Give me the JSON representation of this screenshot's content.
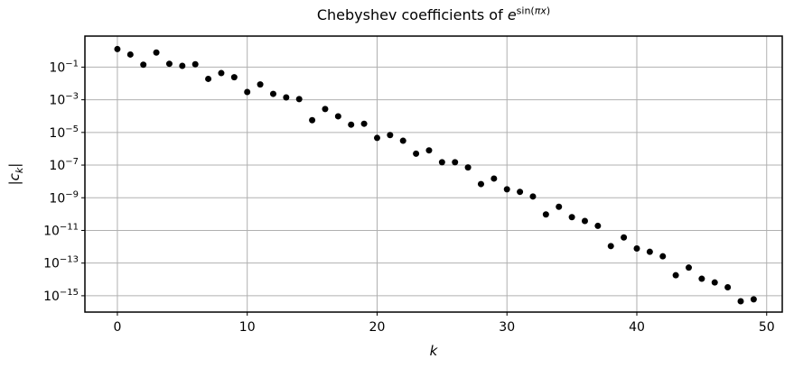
{
  "chart_data": {
    "type": "scatter",
    "title": "Chebyshev coefficients of e^sin(πx)",
    "title_parts": {
      "prefix": "Chebyshev coefficients of ",
      "base": "e",
      "sup_fn": "sin(",
      "sup_var": "πx",
      "sup_close": ")"
    },
    "xlabel": "k",
    "ylabel_parts": {
      "open": "|",
      "base": "c",
      "sub": "k",
      "close": "|"
    },
    "yscale": "log",
    "grid": true,
    "legend": null,
    "x": [
      0,
      1,
      2,
      3,
      4,
      5,
      6,
      7,
      8,
      9,
      10,
      11,
      12,
      13,
      14,
      15,
      16,
      17,
      18,
      19,
      20,
      21,
      22,
      23,
      24,
      25,
      26,
      27,
      28,
      29,
      30,
      31,
      32,
      33,
      34,
      35,
      36,
      37,
      38,
      39,
      40,
      41,
      42,
      43,
      44,
      45,
      46,
      47,
      48,
      49
    ],
    "y": [
      1.27,
      0.59,
      0.14,
      0.78,
      0.16,
      0.12,
      0.15,
      0.019,
      0.043,
      0.024,
      0.003,
      0.0087,
      0.0023,
      0.0014,
      0.0011,
      5.6e-05,
      0.00027,
      9.7e-05,
      3e-05,
      3.4e-05,
      4.6e-06,
      6.9e-06,
      3.1e-06,
      5e-07,
      8e-07,
      1.5e-07,
      1.5e-07,
      7.2e-08,
      6.9e-09,
      1.5e-08,
      3.3e-09,
      2.3e-09,
      1.2e-09,
      9.5e-11,
      2.8e-10,
      6.5e-11,
      3.8e-11,
      1.9e-11,
      1.1e-12,
      3.7e-12,
      7.8e-13,
      4.9e-13,
      2.6e-13,
      1.8e-14,
      5.3e-14,
      1.1e-14,
      6.5e-15,
      3.3e-15,
      4.6e-16,
      6e-16
    ],
    "xticks": [
      0,
      10,
      20,
      30,
      40,
      50
    ],
    "ytick_exponents": [
      -1,
      -3,
      -5,
      -7,
      -9,
      -11,
      -13,
      -15
    ],
    "xlim": [
      -2.5,
      51.2
    ],
    "ylim_exponents": [
      -16.0,
      0.9
    ],
    "marker": {
      "shape": "circle",
      "color": "#000000",
      "radius_px": 3.5
    },
    "colors": {
      "background": "#ffffff",
      "grid": "#b0b0b0",
      "spine": "#000000",
      "text": "#000000",
      "marker": "#000000"
    }
  }
}
